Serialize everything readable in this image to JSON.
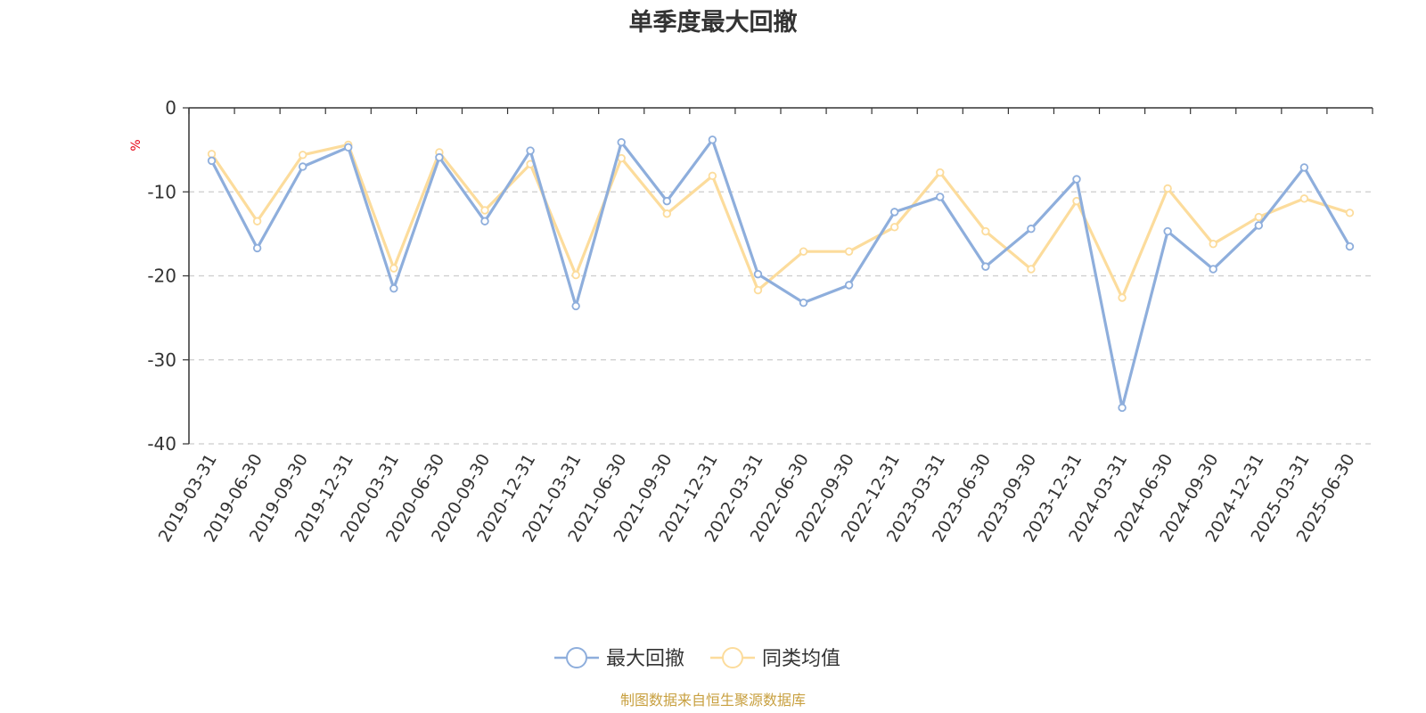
{
  "chart_data": {
    "type": "line",
    "title": "单季度最大回撤",
    "ylabel": "%",
    "ylim": [
      -40,
      0
    ],
    "yticks": [
      0,
      -10,
      -20,
      -30,
      -40
    ],
    "grid": true,
    "legend_position": "bottom-center",
    "categories": [
      "2019-03-31",
      "2019-06-30",
      "2019-09-30",
      "2019-12-31",
      "2020-03-31",
      "2020-06-30",
      "2020-09-30",
      "2020-12-31",
      "2021-03-31",
      "2021-06-30",
      "2021-09-30",
      "2021-12-31",
      "2022-03-31",
      "2022-06-30",
      "2022-09-30",
      "2022-12-31",
      "2023-03-31",
      "2023-06-30",
      "2023-09-30",
      "2023-12-31",
      "2024-03-31",
      "2024-06-30",
      "2024-09-30",
      "2024-12-31",
      "2025-03-31",
      "2025-06-30"
    ],
    "series": [
      {
        "name": "最大回撤",
        "color": "#8eaedc",
        "values": [
          -6.3,
          -16.7,
          -7.0,
          -4.7,
          -21.5,
          -5.9,
          -13.5,
          -5.1,
          -23.6,
          -4.1,
          -11.1,
          -3.8,
          -19.8,
          -23.2,
          -21.1,
          -12.4,
          -10.6,
          -18.9,
          -14.4,
          -8.5,
          -35.7,
          -14.7,
          -19.2,
          -14.0,
          -7.1,
          -16.5
        ]
      },
      {
        "name": "同类均值",
        "color": "#fcdc9c",
        "values": [
          -5.5,
          -13.5,
          -5.6,
          -4.4,
          -19.1,
          -5.3,
          -12.2,
          -6.7,
          -19.9,
          -6.0,
          -12.6,
          -8.1,
          -21.7,
          -17.1,
          -17.1,
          -14.2,
          -7.7,
          -14.7,
          -19.2,
          -11.1,
          -22.6,
          -9.6,
          -16.2,
          -13.0,
          -10.8,
          -12.5
        ]
      }
    ]
  },
  "source_text": "制图数据来自恒生聚源数据库",
  "source_color": "#c8a040",
  "axis_color": "#333333",
  "grid_color": "#cccccc"
}
